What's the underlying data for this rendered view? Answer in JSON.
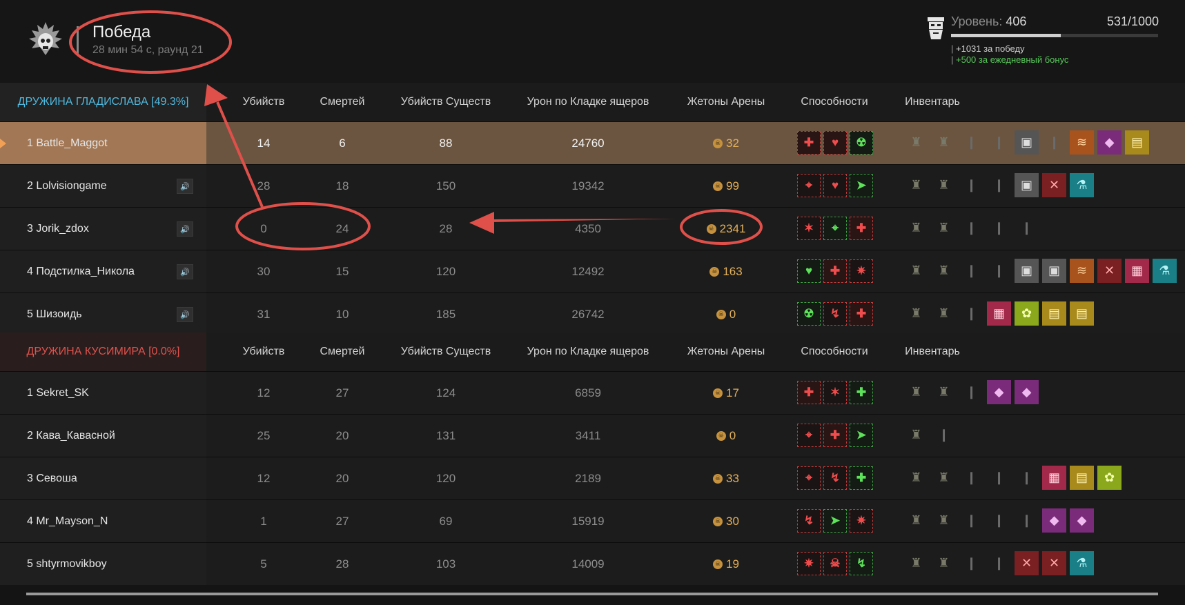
{
  "header": {
    "title": "Победа",
    "subtitle": "28 мин 54 с, раунд 21",
    "level_label": "Уровень:",
    "level_value": "406",
    "xp": "531/1000",
    "xp_progress": 0.531,
    "bonus_win": "+1031 за победу",
    "bonus_daily": "+500 за ежедневный бонус"
  },
  "columns": [
    "Убийств",
    "Смертей",
    "Убийств Существ",
    "Урон по Кладке ящеров",
    "Жетоны Арены",
    "Способности",
    "Инвентарь"
  ],
  "teams": [
    {
      "name": "ДРУЖИНА ГЛАДИСЛАВА [49.3%]",
      "color": "#4fb9df",
      "players": [
        {
          "name": "1 Battle_Maggot",
          "kills": "14",
          "deaths": "6",
          "creatures": "88",
          "damage": "24760",
          "tokens": "32",
          "speaker": false,
          "highlight": true,
          "abilities": [
            {
              "c": "red",
              "f": true,
              "g": "✚"
            },
            {
              "c": "red",
              "f": true,
              "g": "♥"
            },
            {
              "c": "green",
              "g": "☢"
            }
          ],
          "inventory": [
            "armor",
            "armor",
            "plain",
            "plain",
            "gray",
            "plain",
            "orange",
            "purple",
            "gold"
          ]
        },
        {
          "name": "2 Lolvisiongame",
          "kills": "28",
          "deaths": "18",
          "creatures": "150",
          "damage": "19342",
          "tokens": "99",
          "speaker": true,
          "abilities": [
            {
              "c": "red",
              "g": "⌖"
            },
            {
              "c": "red",
              "g": "♥"
            },
            {
              "c": "green",
              "g": "➤"
            }
          ],
          "inventory": [
            "armor",
            "armor",
            "plain",
            "plain",
            "gray",
            "redb",
            "cyan"
          ]
        },
        {
          "name": "3 Jorik_zdox",
          "kills": "0",
          "deaths": "24",
          "creatures": "28",
          "damage": "4350",
          "tokens": "2341",
          "speaker": true,
          "abilities": [
            {
              "c": "red",
              "g": "✶"
            },
            {
              "c": "green",
              "g": "⌖"
            },
            {
              "c": "red",
              "f": true,
              "g": "✚"
            }
          ],
          "inventory": [
            "armor",
            "armor",
            "plain",
            "plain",
            "plain"
          ]
        },
        {
          "name": "4 Подстилка_Никола",
          "kills": "30",
          "deaths": "15",
          "creatures": "120",
          "damage": "12492",
          "tokens": "163",
          "speaker": true,
          "abilities": [
            {
              "c": "green",
              "g": "♥"
            },
            {
              "c": "red",
              "f": true,
              "g": "✚"
            },
            {
              "c": "red",
              "g": "✷"
            }
          ],
          "inventory": [
            "armor",
            "armor",
            "plain",
            "plain",
            "gray",
            "gray",
            "orange",
            "redb",
            "pink",
            "cyan"
          ]
        },
        {
          "name": "5 Шизоидь",
          "kills": "31",
          "deaths": "10",
          "creatures": "185",
          "damage": "26742",
          "tokens": "0",
          "speaker": true,
          "abilities": [
            {
              "c": "green",
              "g": "☢"
            },
            {
              "c": "red",
              "g": "↯"
            },
            {
              "c": "red",
              "f": true,
              "g": "✚"
            }
          ],
          "inventory": [
            "armor",
            "armor",
            "plain",
            "pink",
            "yellowg",
            "gold",
            "gold"
          ]
        }
      ]
    },
    {
      "name": "ДРУЖИНА КУСИМИРА [0.0%]",
      "color": "#e0524c",
      "players": [
        {
          "name": "1 Sekret_SK",
          "kills": "12",
          "deaths": "27",
          "creatures": "124",
          "damage": "6859",
          "tokens": "17",
          "speaker": false,
          "abilities": [
            {
              "c": "red",
              "f": true,
              "g": "✚"
            },
            {
              "c": "red",
              "g": "✶"
            },
            {
              "c": "green",
              "g": "✚"
            }
          ],
          "inventory": [
            "armor",
            "armor",
            "plain",
            "purple",
            "purple"
          ]
        },
        {
          "name": "2 Кава_Кавасной",
          "kills": "25",
          "deaths": "20",
          "creatures": "131",
          "damage": "3411",
          "tokens": "0",
          "speaker": false,
          "abilities": [
            {
              "c": "red",
              "g": "⌖"
            },
            {
              "c": "red",
              "f": true,
              "g": "✚"
            },
            {
              "c": "green",
              "g": "➤"
            }
          ],
          "inventory": [
            "armor",
            "plain"
          ]
        },
        {
          "name": "3 Севоша",
          "kills": "12",
          "deaths": "20",
          "creatures": "120",
          "damage": "2189",
          "tokens": "33",
          "speaker": false,
          "abilities": [
            {
              "c": "red",
              "g": "⌖"
            },
            {
              "c": "red",
              "g": "↯"
            },
            {
              "c": "green",
              "g": "✚"
            }
          ],
          "inventory": [
            "armor",
            "armor",
            "plain",
            "plain",
            "plain",
            "pink",
            "gold",
            "yellowg"
          ]
        },
        {
          "name": "4 Mr_Mayson_N",
          "kills": "1",
          "deaths": "27",
          "creatures": "69",
          "damage": "15919",
          "tokens": "30",
          "speaker": false,
          "abilities": [
            {
              "c": "red",
              "g": "↯"
            },
            {
              "c": "green",
              "g": "➤"
            },
            {
              "c": "red",
              "g": "✷"
            }
          ],
          "inventory": [
            "armor",
            "armor",
            "plain",
            "plain",
            "plain",
            "purple",
            "purple"
          ]
        },
        {
          "name": "5 shtyrmovikboy",
          "kills": "5",
          "deaths": "28",
          "creatures": "103",
          "damage": "14009",
          "tokens": "19",
          "speaker": false,
          "abilities": [
            {
              "c": "red",
              "g": "✷"
            },
            {
              "c": "red",
              "g": "☠"
            },
            {
              "c": "green",
              "g": "↯"
            }
          ],
          "inventory": [
            "armor",
            "armor",
            "plain",
            "plain",
            "redb",
            "redb",
            "cyan"
          ]
        }
      ]
    }
  ]
}
